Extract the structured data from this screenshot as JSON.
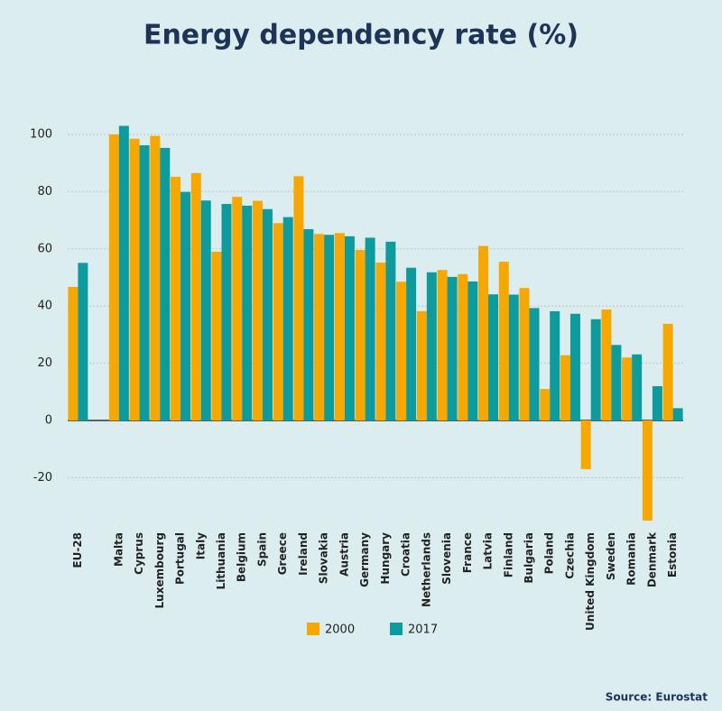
{
  "chart_data": {
    "type": "bar",
    "title": "Energy dependency rate (%)",
    "categories": [
      "EU-28",
      null,
      "Malta",
      "Cyprus",
      "Luxembourg",
      "Portugal",
      "Italy",
      "Lithuania",
      "Belgium",
      "Spain",
      "Greece",
      "Ireland",
      "Slovakia",
      "Austria",
      "Germany",
      "Hungary",
      "Croatia",
      "Netherlands",
      "Slovenia",
      "France",
      "Latvia",
      "Finland",
      "Bulgaria",
      "Poland",
      "Czechia",
      "United Kingdom",
      "Sweden",
      "Romania",
      "Denmark",
      "Estonia"
    ],
    "series": [
      {
        "name": "2000",
        "color": "#f6a800",
        "values": [
          46.7,
          null,
          100,
          98.5,
          99.5,
          85.2,
          86.5,
          59,
          78.2,
          76.8,
          69,
          85.4,
          65.2,
          65.5,
          59.6,
          55.2,
          48.5,
          38.2,
          52.6,
          51.2,
          61,
          55.5,
          46.3,
          11,
          22.8,
          -17,
          38.8,
          22,
          -35,
          33.8
        ]
      },
      {
        "name": "2017",
        "color": "#0e9b9e",
        "values": [
          55.1,
          null,
          103,
          96.2,
          95.3,
          79.9,
          76.9,
          75.7,
          75.1,
          73.9,
          71.1,
          66.9,
          64.9,
          64.4,
          63.9,
          62.5,
          53.4,
          51.8,
          50.2,
          48.6,
          44.1,
          44,
          39.3,
          38.2,
          37.3,
          35.4,
          26.4,
          23.1,
          12,
          4.3
        ]
      }
    ],
    "ylim": [
      -36,
      110
    ],
    "yticks": [
      -20,
      0,
      20,
      40,
      60,
      80,
      100
    ],
    "grid": true,
    "source": "Source: Eurostat"
  }
}
